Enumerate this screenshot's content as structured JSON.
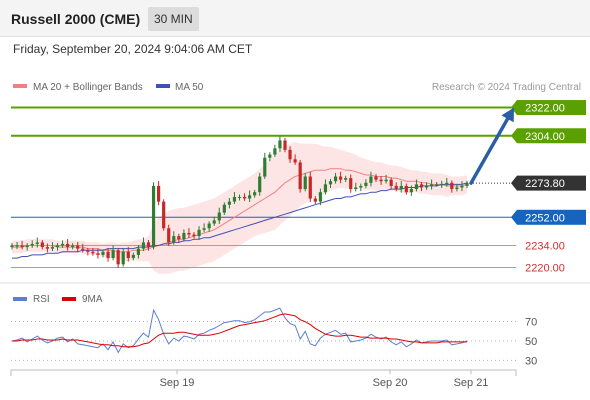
{
  "header": {
    "instrument": "Russell 2000 (CME)",
    "timeframe": "30 MIN",
    "datetime": "Friday, September 20, 2024 9:04:06 AM CET"
  },
  "legend": {
    "ma20": "MA 20 + Bollinger Bands",
    "ma50": "MA 50",
    "credit": "Research © 2024 Trading Central",
    "rsi": "RSI",
    "rsi_ma": "9MA"
  },
  "colors": {
    "up": "#2e7d32",
    "down": "#c62828",
    "ma20": "#f08080",
    "ma50": "#3f51b5",
    "band_fill": "#fde0e0",
    "resistance": "#5aa000",
    "support": "#1565c0",
    "support_light": "#f08080",
    "arrow": "#2a5fa8",
    "price_tag": "#333333"
  },
  "chart_data": [
    {
      "type": "candlestick",
      "ylim": [
        2212,
        2330
      ],
      "x_ticks": [
        "Sep 19",
        "Sep 20",
        "Sep 21"
      ],
      "levels": [
        {
          "label": "2322.00",
          "value": 2322.0,
          "kind": "resistance"
        },
        {
          "label": "2304.00",
          "value": 2304.0,
          "kind": "resistance"
        },
        {
          "label": "2273.80",
          "value": 2273.8,
          "kind": "last"
        },
        {
          "label": "2252.00",
          "value": 2252.0,
          "kind": "pivot"
        },
        {
          "label": "2234.00",
          "value": 2234.0,
          "kind": "support"
        },
        {
          "label": "2220.00",
          "value": 2220.0,
          "kind": "support"
        }
      ],
      "close": [
        2234,
        2234,
        2233,
        2234,
        2235,
        2236,
        2233,
        2232,
        2233,
        2234,
        2235,
        2233,
        2234,
        2232,
        2231,
        2230,
        2229,
        2228,
        2230,
        2226,
        2231,
        2222,
        2230,
        2226,
        2228,
        2232,
        2236,
        2233,
        2272,
        2262,
        2245,
        2236,
        2240,
        2238,
        2242,
        2241,
        2240,
        2244,
        2245,
        2248,
        2250,
        2255,
        2260,
        2262,
        2265,
        2265,
        2264,
        2266,
        2268,
        2278,
        2290,
        2292,
        2296,
        2301,
        2295,
        2289,
        2287,
        2270,
        2278,
        2264,
        2262,
        2268,
        2273,
        2275,
        2278,
        2276,
        2277,
        2270,
        2271,
        2272,
        2274,
        2278,
        2276,
        2275,
        2276,
        2272,
        2270,
        2272,
        2268,
        2270,
        2273,
        2271,
        2272,
        2273,
        2273,
        2273,
        2274,
        2270,
        2271,
        2272,
        2273.8
      ],
      "ma20": [
        2233,
        2233,
        2233,
        2234,
        2234,
        2234,
        2234,
        2234,
        2234,
        2233,
        2233,
        2233,
        2233,
        2233,
        2233,
        2232,
        2232,
        2232,
        2231,
        2231,
        2231,
        2230,
        2230,
        2230,
        2231,
        2231,
        2231,
        2232,
        2233,
        2234,
        2235,
        2236,
        2237,
        2238,
        2238,
        2239,
        2240,
        2241,
        2242,
        2243,
        2244,
        2246,
        2248,
        2250,
        2252,
        2254,
        2256,
        2258,
        2260,
        2262,
        2264,
        2266,
        2268,
        2271,
        2274,
        2276,
        2278,
        2279,
        2280,
        2281,
        2282,
        2282,
        2282,
        2283,
        2283,
        2283,
        2282,
        2282,
        2281,
        2280,
        2279,
        2279,
        2278,
        2278,
        2278,
        2277,
        2277,
        2276,
        2275,
        2275,
        2275,
        2274,
        2274,
        2273,
        2273,
        2273,
        2272,
        2272,
        2272,
        2272,
        2273
      ],
      "ma50": [
        2226,
        2226,
        2227,
        2227,
        2228,
        2228,
        2228,
        2229,
        2229,
        2229,
        2230,
        2230,
        2230,
        2230,
        2231,
        2231,
        2231,
        2231,
        2231,
        2232,
        2232,
        2232,
        2232,
        2232,
        2232,
        2233,
        2233,
        2233,
        2234,
        2234,
        2235,
        2235,
        2236,
        2236,
        2237,
        2237,
        2238,
        2238,
        2239,
        2239,
        2240,
        2241,
        2242,
        2243,
        2244,
        2245,
        2246,
        2247,
        2248,
        2249,
        2250,
        2251,
        2252,
        2253,
        2254,
        2255,
        2256,
        2257,
        2258,
        2259,
        2260,
        2261,
        2262,
        2263,
        2264,
        2264,
        2265,
        2265,
        2266,
        2267,
        2267,
        2268,
        2268,
        2269,
        2269,
        2270,
        2270,
        2270,
        2271,
        2271,
        2271,
        2272,
        2272,
        2272,
        2272,
        2273,
        2273,
        2273,
        2273,
        2273,
        2274
      ],
      "bb_width": [
        4,
        4,
        4,
        4,
        4,
        4,
        4,
        4,
        4,
        4,
        4,
        4,
        4,
        4,
        4,
        4,
        4,
        4,
        4,
        5,
        5,
        5,
        6,
        6,
        6,
        7,
        7,
        8,
        15,
        18,
        19,
        20,
        20,
        20,
        20,
        20,
        20,
        20,
        20,
        20,
        20,
        20,
        20,
        20,
        20,
        20,
        20,
        20,
        20,
        21,
        22,
        23,
        24,
        24,
        24,
        23,
        22,
        20,
        19,
        18,
        17,
        16,
        15,
        14,
        13,
        12,
        12,
        11,
        11,
        10,
        10,
        9,
        9,
        9,
        8,
        8,
        8,
        8,
        8,
        7,
        7,
        7,
        7,
        7,
        7,
        7,
        7,
        6,
        6,
        6,
        6
      ],
      "projection": {
        "from_bar": 90,
        "from": 2273.8,
        "to": 2322.0
      }
    },
    {
      "type": "line",
      "title": "RSI",
      "ylim": [
        22,
        80
      ],
      "y_ticks": [
        70,
        50,
        30
      ],
      "series": [
        {
          "name": "RSI",
          "values": [
            50,
            51,
            53,
            49,
            52,
            55,
            51,
            48,
            50,
            53,
            54,
            49,
            52,
            47,
            46,
            45,
            44,
            43,
            47,
            41,
            49,
            38,
            47,
            43,
            45,
            52,
            58,
            54,
            82,
            72,
            57,
            47,
            53,
            50,
            55,
            54,
            52,
            57,
            58,
            61,
            63,
            66,
            69,
            70,
            71,
            71,
            69,
            70,
            72,
            76,
            80,
            80,
            82,
            84,
            74,
            68,
            66,
            52,
            60,
            47,
            45,
            53,
            57,
            59,
            61,
            57,
            58,
            49,
            50,
            51,
            53,
            57,
            54,
            52,
            54,
            49,
            46,
            49,
            44,
            47,
            51,
            48,
            49,
            50,
            50,
            50,
            51,
            46,
            47,
            48,
            50
          ]
        },
        {
          "name": "9MA",
          "values": [
            50,
            50,
            51,
            51,
            51,
            52,
            52,
            51,
            51,
            51,
            52,
            51,
            51,
            51,
            50,
            49,
            48,
            47,
            46,
            46,
            45,
            45,
            44,
            44,
            44,
            45,
            47,
            48,
            52,
            56,
            58,
            58,
            58,
            59,
            59,
            58,
            57,
            56,
            56,
            56,
            57,
            58,
            60,
            62,
            64,
            66,
            67,
            68,
            69,
            70,
            71,
            73,
            75,
            77,
            78,
            77,
            76,
            72,
            70,
            67,
            63,
            60,
            57,
            56,
            55,
            55,
            56,
            56,
            55,
            54,
            54,
            53,
            53,
            53,
            53,
            52,
            52,
            51,
            50,
            49,
            49,
            48,
            48,
            48,
            48,
            49,
            49,
            49,
            49,
            49,
            49
          ]
        }
      ]
    }
  ]
}
